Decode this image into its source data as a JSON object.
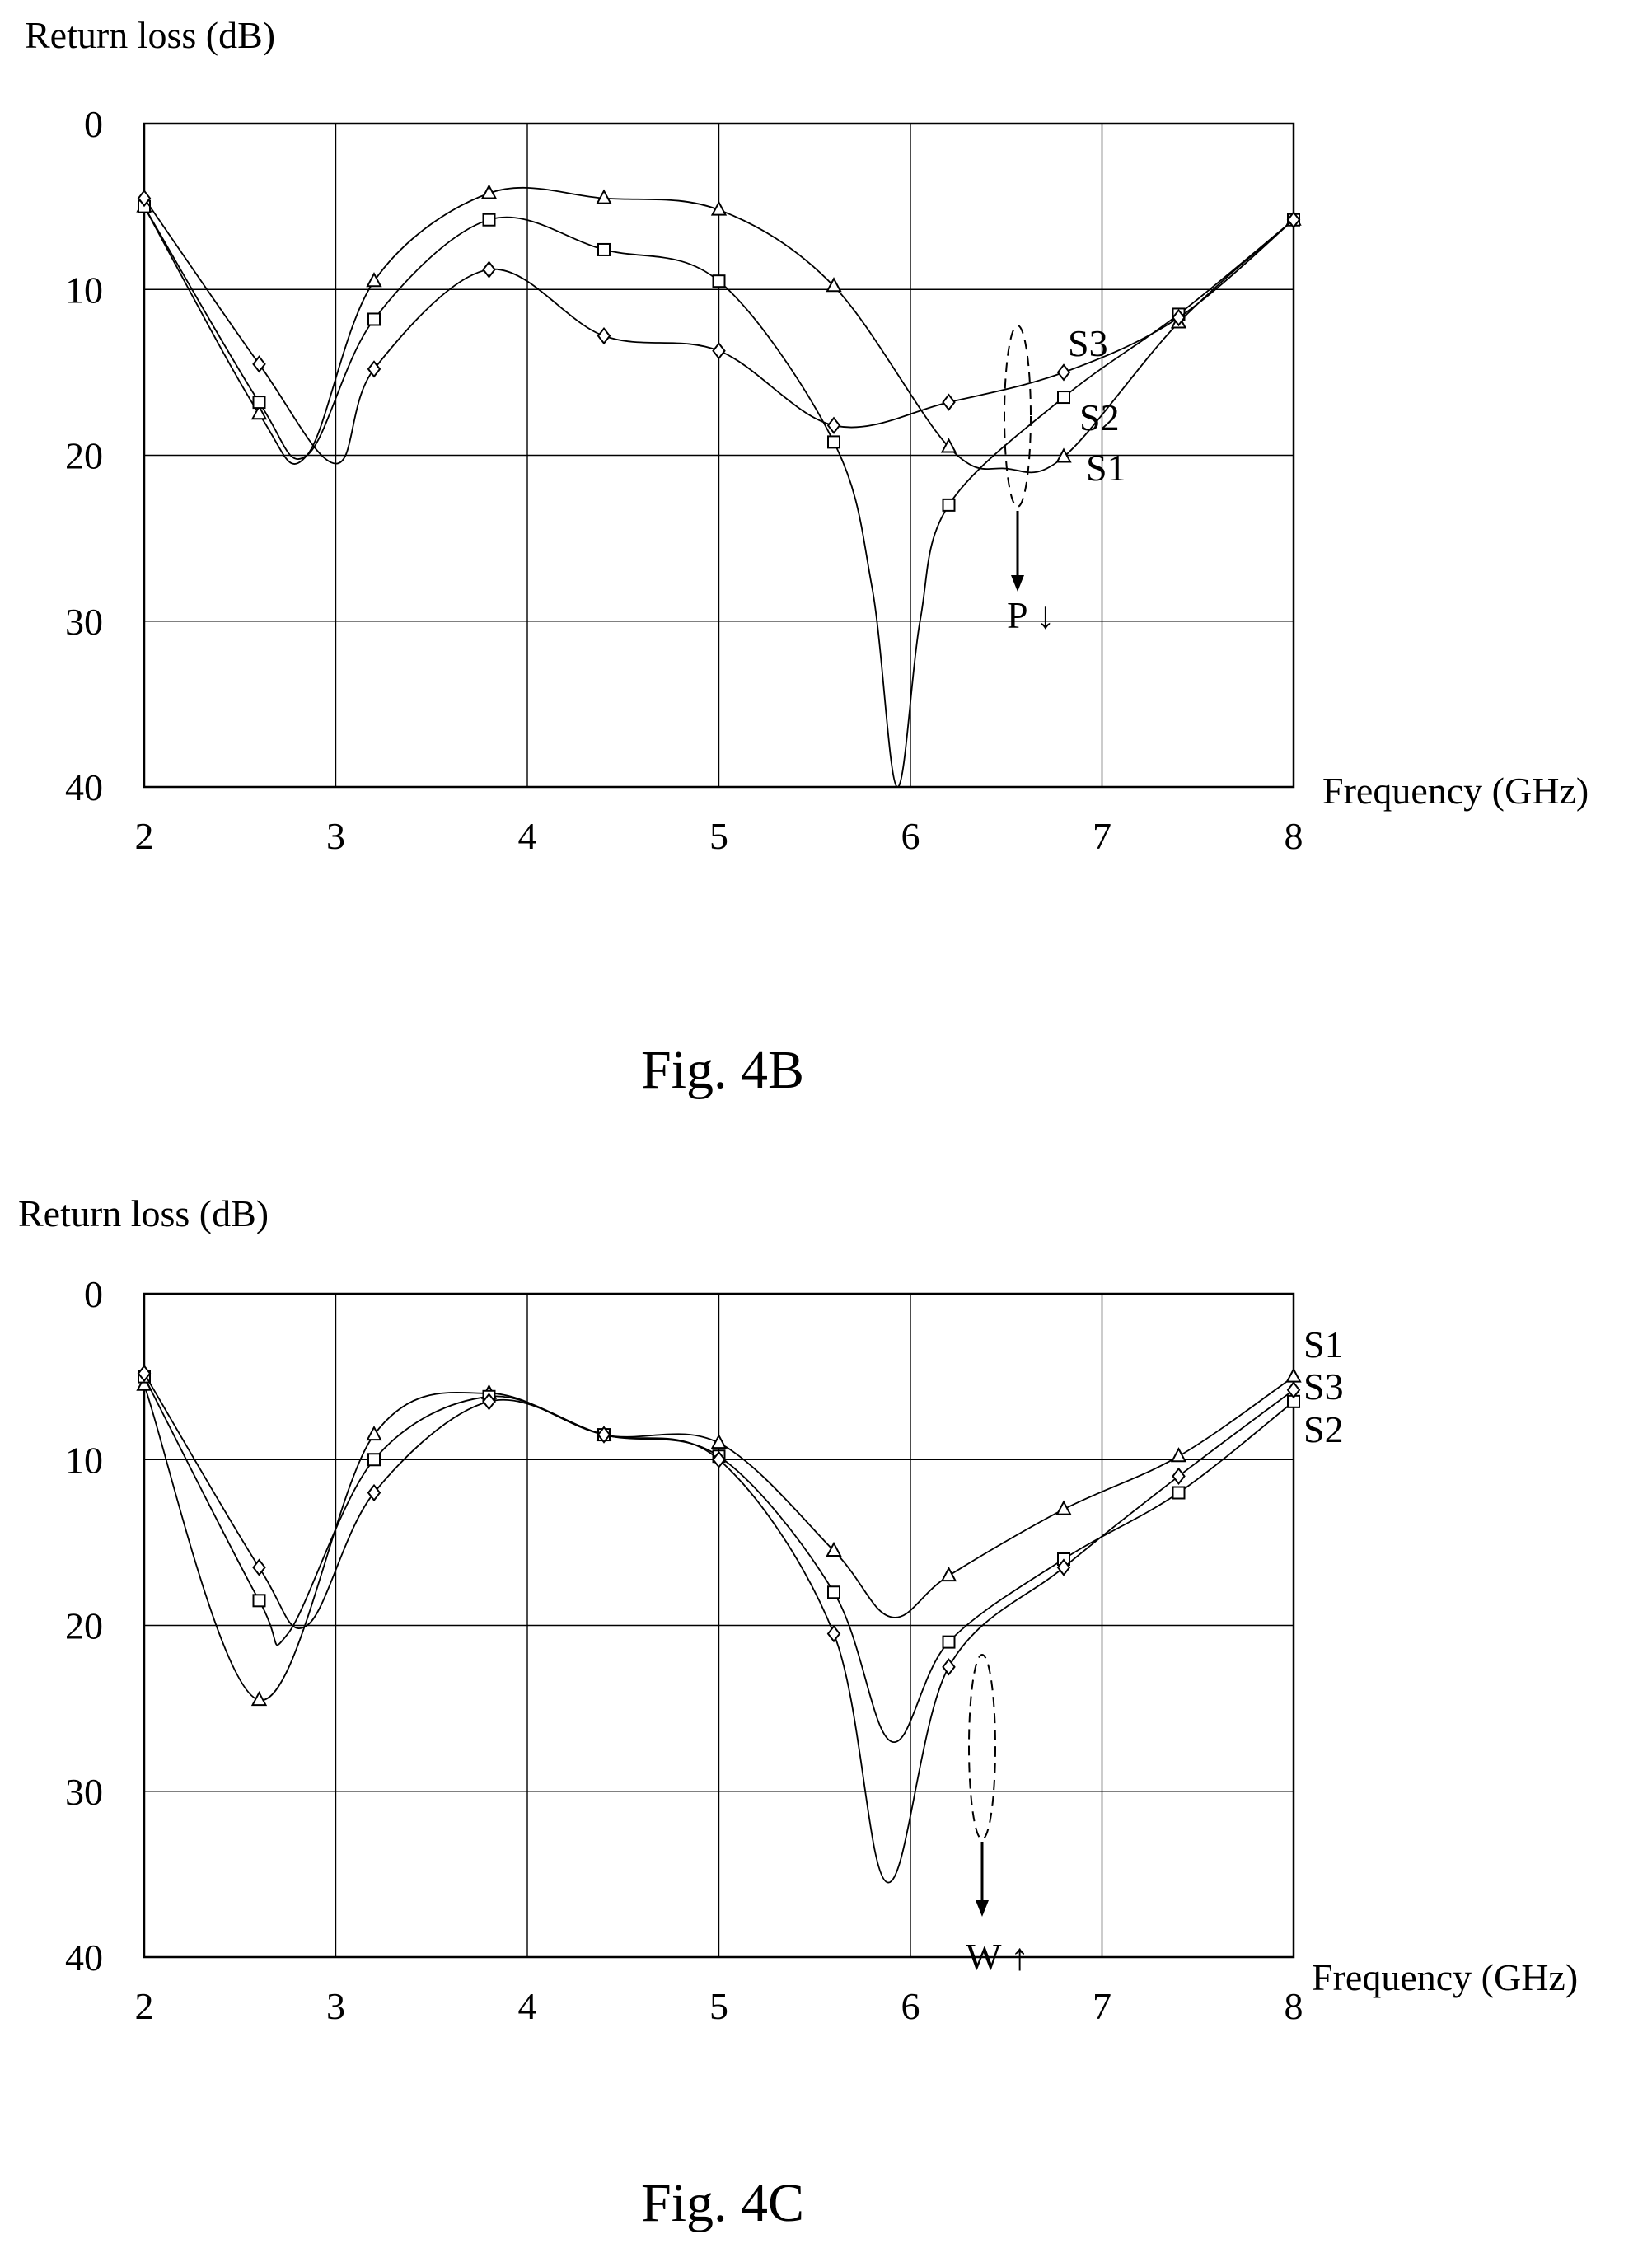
{
  "chart_data": [
    {
      "type": "line",
      "caption": "Fig. 4B",
      "ylabel": "Return loss (dB)",
      "xlabel": "Frequency (GHz)",
      "xlim": [
        2,
        8
      ],
      "ylim": [
        0,
        40
      ],
      "y_inverted": true,
      "x_ticks": [
        2,
        3,
        4,
        5,
        6,
        7,
        8
      ],
      "y_ticks": [
        0,
        10,
        20,
        30,
        40
      ],
      "grid": true,
      "annotation": "P ↓",
      "series": [
        {
          "name": "S1",
          "marker": "triangle",
          "x": [
            2.0,
            2.6,
            2.85,
            3.2,
            3.8,
            4.4,
            5.0,
            5.6,
            6.2,
            6.5,
            6.8,
            7.4,
            8.0
          ],
          "y": [
            5.0,
            17.5,
            20.0,
            9.5,
            4.2,
            4.5,
            5.2,
            9.8,
            19.5,
            20.8,
            20.1,
            12.0,
            5.8
          ]
        },
        {
          "name": "S2",
          "marker": "square",
          "x": [
            2.0,
            2.6,
            2.85,
            3.2,
            3.8,
            4.4,
            5.0,
            5.6,
            5.8,
            5.93,
            6.05,
            6.2,
            6.8,
            7.4,
            8.0
          ],
          "y": [
            5.0,
            16.8,
            20.0,
            11.8,
            5.8,
            7.6,
            9.5,
            19.2,
            28.0,
            40.0,
            30.0,
            23.0,
            16.5,
            11.5,
            5.8
          ]
        },
        {
          "name": "S3",
          "marker": "diamond",
          "x": [
            2.0,
            2.6,
            3.0,
            3.2,
            3.8,
            4.4,
            5.0,
            5.6,
            6.2,
            6.8,
            7.4,
            8.0
          ],
          "y": [
            4.5,
            14.5,
            20.5,
            14.8,
            8.8,
            12.8,
            13.7,
            18.2,
            16.8,
            15.0,
            11.7,
            5.8
          ]
        }
      ]
    },
    {
      "type": "line",
      "caption": "Fig. 4C",
      "ylabel": "Return loss (dB)",
      "xlabel": "Frequency (GHz)",
      "xlim": [
        2,
        8
      ],
      "ylim": [
        0,
        40
      ],
      "y_inverted": true,
      "x_ticks": [
        2,
        3,
        4,
        5,
        6,
        7,
        8
      ],
      "y_ticks": [
        0,
        10,
        20,
        30,
        40
      ],
      "grid": true,
      "annotation": "W ↑",
      "series": [
        {
          "name": "S1",
          "marker": "triangle",
          "x": [
            2.0,
            2.6,
            3.2,
            3.8,
            4.4,
            5.0,
            5.6,
            5.9,
            6.2,
            6.8,
            7.4,
            8.0
          ],
          "y": [
            5.5,
            24.5,
            8.5,
            6.0,
            8.5,
            9.0,
            15.5,
            19.5,
            17.0,
            13.0,
            9.8,
            5.0
          ]
        },
        {
          "name": "S2",
          "marker": "square",
          "x": [
            2.0,
            2.6,
            2.75,
            3.2,
            3.8,
            4.4,
            5.0,
            5.6,
            5.9,
            6.2,
            6.8,
            7.4,
            8.0
          ],
          "y": [
            5.0,
            18.5,
            20.5,
            10.0,
            6.2,
            8.5,
            9.8,
            18.0,
            27.0,
            21.0,
            16.0,
            12.0,
            6.5
          ]
        },
        {
          "name": "S3",
          "marker": "diamond",
          "x": [
            2.0,
            2.6,
            2.85,
            3.2,
            3.8,
            4.4,
            5.0,
            5.6,
            5.88,
            6.2,
            6.8,
            7.4,
            8.0
          ],
          "y": [
            4.8,
            16.5,
            20.0,
            12.0,
            6.5,
            8.5,
            10.0,
            20.5,
            35.5,
            22.5,
            16.5,
            11.0,
            5.8
          ]
        }
      ]
    }
  ]
}
